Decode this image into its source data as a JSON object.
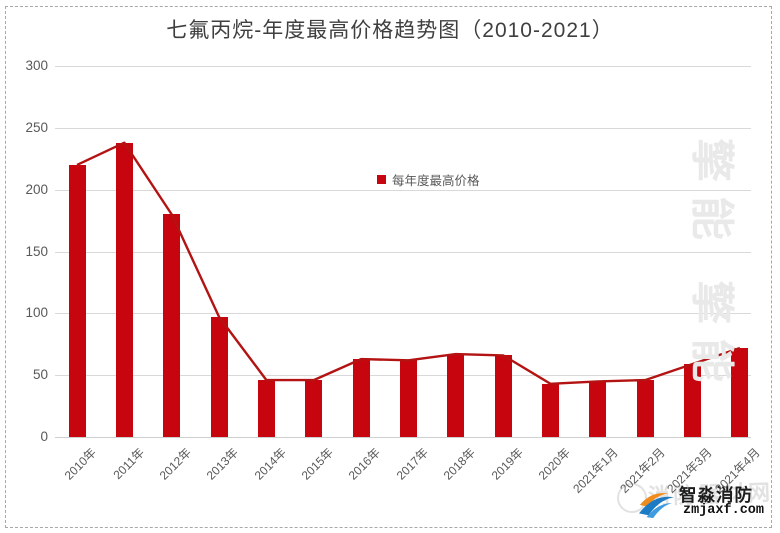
{
  "title": "七氟丙烷-年度最高价格趋势图（2010-2021）",
  "legend": {
    "label": "每年度最高价格"
  },
  "chart_data": {
    "type": "bar",
    "title": "七氟丙烷-年度最高价格趋势图（2010-2021）",
    "categories": [
      "2010年",
      "2011年",
      "2012年",
      "2013年",
      "2014年",
      "2015年",
      "2016年",
      "2017年",
      "2018年",
      "2019年",
      "2020年",
      "2021年1月",
      "2021年2月",
      "2021年3月",
      "2021年4月"
    ],
    "series": [
      {
        "name": "每年度最高价格",
        "type": "bar",
        "values": [
          220,
          238,
          180,
          97,
          46,
          46,
          63,
          62,
          67,
          66,
          43,
          45,
          46,
          59,
          72
        ]
      },
      {
        "name": "每年度最高价格",
        "type": "line",
        "values": [
          220,
          238,
          180,
          97,
          46,
          46,
          63,
          62,
          67,
          66,
          43,
          45,
          46,
          59,
          72
        ]
      }
    ],
    "xlabel": "",
    "ylabel": "",
    "ylim": [
      0,
      300
    ],
    "yticks": [
      0,
      50,
      100,
      150,
      200,
      250,
      300
    ],
    "grid": true,
    "legend_position": "center",
    "bar_color": "#c7050f",
    "line_color": "#b31312",
    "label_color": "#595959",
    "grid_color": "#d9d9d9"
  },
  "watermarks": {
    "side_text": "擎能 擎能",
    "ghost_text": "消防器材网",
    "logo_name": "智淼消防",
    "logo_domain": "zmjaxf.com"
  }
}
